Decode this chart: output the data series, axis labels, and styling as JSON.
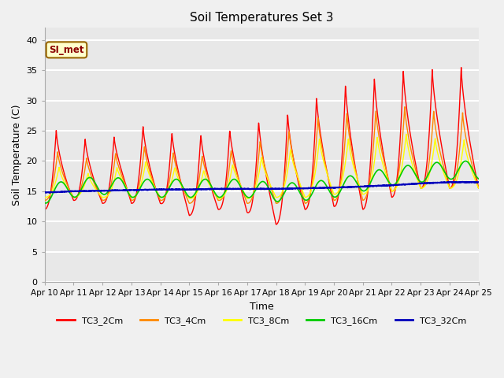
{
  "title": "Soil Temperatures Set 3",
  "xlabel": "Time",
  "ylabel": "Soil Temperature (C)",
  "ylim": [
    0,
    42
  ],
  "yticks": [
    0,
    5,
    10,
    15,
    20,
    25,
    30,
    35,
    40
  ],
  "plot_bg": "#e8e8e8",
  "fig_bg": "#f0f0f0",
  "grid_color": "#ffffff",
  "annotation_text": "SI_met",
  "annotation_fg": "#8b0000",
  "annotation_bg": "#ffffcc",
  "annotation_border": "#996600",
  "series": {
    "TC3_2Cm": {
      "color": "#ff0000",
      "lw": 1.0
    },
    "TC3_4Cm": {
      "color": "#ff8800",
      "lw": 1.0
    },
    "TC3_8Cm": {
      "color": "#ffff00",
      "lw": 1.0
    },
    "TC3_16Cm": {
      "color": "#00cc00",
      "lw": 1.2
    },
    "TC3_32Cm": {
      "color": "#0000bb",
      "lw": 1.5
    }
  },
  "x_tick_days": [
    10,
    11,
    12,
    13,
    14,
    15,
    16,
    17,
    18,
    19,
    20,
    21,
    22,
    23,
    24,
    25
  ],
  "peaks_2cm": [
    25.5,
    24.5,
    22.5,
    26.5,
    25.0,
    24.5,
    24.5,
    26.5,
    27.0,
    29.5,
    32.5,
    33.0,
    35.0,
    35.0,
    35.5
  ],
  "mins_2cm": [
    12.0,
    13.5,
    13.0,
    13.0,
    13.0,
    11.0,
    12.0,
    11.5,
    9.5,
    12.0,
    12.5,
    12.0,
    14.0,
    15.5,
    15.5
  ],
  "peaks_4cm": [
    22.0,
    21.0,
    20.0,
    23.0,
    22.0,
    21.0,
    21.0,
    23.0,
    24.0,
    26.5,
    28.5,
    27.5,
    29.5,
    28.5,
    28.0
  ],
  "mins_4cm": [
    13.5,
    14.0,
    13.5,
    13.5,
    13.5,
    13.0,
    13.5,
    13.0,
    13.0,
    13.0,
    13.5,
    13.5,
    15.0,
    15.5,
    15.5
  ],
  "peaks_8cm": [
    19.5,
    18.5,
    17.5,
    20.5,
    19.5,
    18.5,
    18.5,
    20.5,
    21.0,
    23.0,
    24.5,
    23.0,
    25.0,
    24.0,
    23.5
  ],
  "mins_8cm": [
    14.0,
    14.0,
    14.0,
    14.0,
    14.0,
    13.8,
    13.8,
    13.8,
    14.0,
    14.0,
    14.5,
    14.5,
    15.0,
    15.5,
    15.5
  ],
  "base_16cm": [
    14.5,
    15.5,
    16.0,
    15.5,
    15.5,
    15.5,
    15.5,
    15.5,
    14.8,
    15.0,
    15.5,
    16.5,
    17.5,
    18.0,
    18.5
  ],
  "base_32cm": [
    14.8,
    15.0,
    15.1,
    15.2,
    15.3,
    15.3,
    15.4,
    15.4,
    15.4,
    15.5,
    15.6,
    15.8,
    16.0,
    16.3,
    16.5
  ]
}
